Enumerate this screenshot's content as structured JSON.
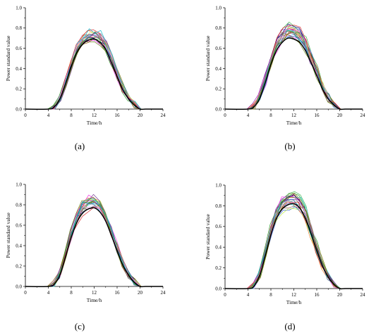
{
  "chart_data": [
    {
      "type": "line",
      "panel_label": "(a)",
      "xlabel": "Time/h",
      "ylabel": "Power standard value",
      "xlim": [
        0,
        24
      ],
      "ylim": [
        0,
        1.0
      ],
      "xticks": [
        "0",
        "4",
        "8",
        "12",
        "16",
        "20",
        "24"
      ],
      "yticks": [
        "0.0",
        "0.2",
        "0.4",
        "0.6",
        "0.8",
        "1.0"
      ],
      "grid": false,
      "mean_peak": 0.69,
      "sample_peak_max": 0.78,
      "sample_count": 22,
      "hours": [
        4,
        5,
        6,
        7,
        8,
        9,
        10,
        11,
        12,
        13,
        14,
        15,
        16,
        17,
        18,
        19,
        20,
        21
      ],
      "mean_curve": [
        0,
        0.02,
        0.1,
        0.25,
        0.42,
        0.56,
        0.64,
        0.68,
        0.69,
        0.66,
        0.59,
        0.46,
        0.32,
        0.19,
        0.1,
        0.04,
        0,
        0
      ]
    },
    {
      "type": "line",
      "panel_label": "(b)",
      "xlabel": "Time/h",
      "ylabel": "Power standard value",
      "xlim": [
        0,
        24
      ],
      "ylim": [
        0,
        1.0
      ],
      "xticks": [
        "0",
        "4",
        "8",
        "12",
        "16",
        "20",
        "24"
      ],
      "yticks": [
        "0.0",
        "0.2",
        "0.4",
        "0.6",
        "0.8",
        "1.0"
      ],
      "grid": false,
      "mean_peak": 0.7,
      "sample_peak_max": 0.83,
      "sample_count": 22,
      "hours": [
        4,
        5,
        6,
        7,
        8,
        9,
        10,
        11,
        12,
        13,
        14,
        15,
        16,
        17,
        18,
        19,
        20,
        21
      ],
      "mean_curve": [
        0,
        0.02,
        0.1,
        0.26,
        0.44,
        0.58,
        0.66,
        0.7,
        0.69,
        0.66,
        0.58,
        0.46,
        0.33,
        0.2,
        0.1,
        0.04,
        0,
        0
      ]
    },
    {
      "type": "line",
      "panel_label": "(c)",
      "xlabel": "Time/h",
      "ylabel": "Power standard value",
      "xlim": [
        0,
        24
      ],
      "ylim": [
        0,
        1.0
      ],
      "xticks": [
        "0",
        "4",
        "8",
        "12",
        "16",
        "20",
        "24"
      ],
      "yticks": [
        "0.0",
        "0.2",
        "0.4",
        "0.6",
        "0.8",
        "1.0"
      ],
      "grid": false,
      "mean_peak": 0.77,
      "sample_peak_max": 0.88,
      "sample_count": 22,
      "hours": [
        4,
        5,
        6,
        7,
        8,
        9,
        10,
        11,
        12,
        13,
        14,
        15,
        16,
        17,
        18,
        19,
        20,
        21
      ],
      "mean_curve": [
        0,
        0.02,
        0.11,
        0.29,
        0.48,
        0.63,
        0.72,
        0.76,
        0.77,
        0.73,
        0.64,
        0.5,
        0.35,
        0.21,
        0.11,
        0.04,
        0,
        0
      ]
    },
    {
      "type": "line",
      "panel_label": "(d)",
      "xlabel": "Time/h",
      "ylabel": "Power standard value",
      "xlim": [
        0,
        24
      ],
      "ylim": [
        0,
        1.0
      ],
      "xticks": [
        "0",
        "4",
        "8",
        "12",
        "16",
        "20",
        "24"
      ],
      "yticks": [
        "0.0",
        "0.2",
        "0.4",
        "0.6",
        "0.8",
        "1.0"
      ],
      "grid": false,
      "mean_peak": 0.82,
      "sample_peak_max": 0.93,
      "sample_count": 22,
      "hours": [
        4,
        5,
        6,
        7,
        8,
        9,
        10,
        11,
        12,
        13,
        14,
        15,
        16,
        17,
        18,
        19,
        20,
        21
      ],
      "mean_curve": [
        0,
        0.02,
        0.12,
        0.31,
        0.52,
        0.68,
        0.77,
        0.81,
        0.82,
        0.78,
        0.68,
        0.53,
        0.37,
        0.22,
        0.11,
        0.04,
        0,
        0
      ]
    }
  ],
  "sample_colors": [
    "#e6194b",
    "#3cb44b",
    "#4363d8",
    "#f58231",
    "#911eb4",
    "#42d4f4",
    "#f032e6",
    "#9a6324",
    "#469990",
    "#808000",
    "#000075",
    "#a9a9a9",
    "#bfef45",
    "#dcbeff",
    "#7b3f99",
    "#1f77b4",
    "#2ca02c",
    "#d62728",
    "#8c564b",
    "#17becf",
    "#e377c2",
    "#6b8e23"
  ],
  "mean_color": "#000000"
}
